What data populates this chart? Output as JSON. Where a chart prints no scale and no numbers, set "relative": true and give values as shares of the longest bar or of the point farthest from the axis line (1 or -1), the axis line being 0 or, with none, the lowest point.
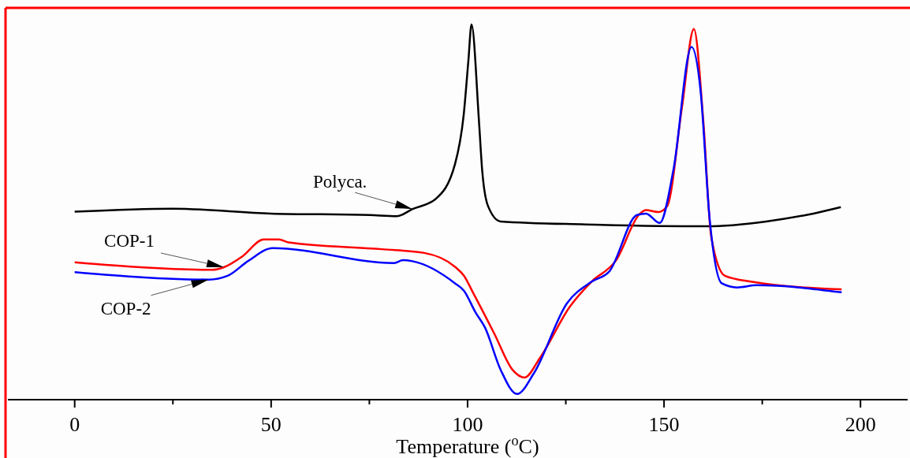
{
  "chart_data": {
    "type": "line",
    "relative": true,
    "xlabel": "Temperature ($^{o}$C)",
    "xlim": [
      -17,
      212
    ],
    "xticks": [
      0,
      {
        "value": 25,
        "label": null
      },
      50,
      {
        "value": 75,
        "label": null
      },
      100,
      {
        "value": 125,
        "label": null
      },
      150,
      {
        "value": 175,
        "label": null
      },
      200
    ],
    "tick_labels": "x",
    "grid": false,
    "line_style": "solid",
    "series": [
      {
        "name": "Polyca.",
        "color": "#000000",
        "x": [
          0,
          25,
          50,
          75,
          82,
          86,
          92,
          96.8,
          99,
          100.2,
          101,
          102.9,
          103.7,
          105.2,
          108.4,
          130,
          161,
          176,
          188,
          195
        ],
        "values": [
          0.501,
          0.509,
          0.496,
          0.492,
          0.489,
          0.508,
          0.536,
          0.628,
          0.758,
          0.903,
          1,
          0.742,
          0.613,
          0.516,
          0.475,
          0.467,
          0.462,
          0.475,
          0.496,
          0.513
        ]
      },
      {
        "name": "COP-1",
        "color": "#ff0000",
        "x": [
          0,
          35,
          38,
          42.7,
          48.1,
          52,
          54.4,
          78.2,
          89,
          96.8,
          99.1,
          101.4,
          106.8,
          111.4,
          114.5,
          118.4,
          126.1,
          131.5,
          137.7,
          143.9,
          145.4,
          148.5,
          150.8,
          154.6,
          157.6,
          160,
          162,
          165.5,
          172.5,
          195.2
        ],
        "values": [
          0.366,
          0.346,
          0.353,
          0.382,
          0.427,
          0.427,
          0.419,
          0.401,
          0.391,
          0.354,
          0.33,
          0.285,
          0.176,
          0.08,
          0.059,
          0.111,
          0.249,
          0.314,
          0.37,
          0.496,
          0.505,
          0.5,
          0.516,
          0.782,
          0.988,
          0.742,
          0.435,
          0.33,
          0.314,
          0.294
        ]
      },
      {
        "name": "COP-2",
        "color": "#0000ff",
        "x": [
          0,
          34.1,
          38.9,
          44.2,
          50.4,
          81.3,
          83.6,
          86,
          96.8,
          99.1,
          102,
          104.4,
          108.4,
          112.6,
          116.9,
          125.3,
          131.5,
          136.1,
          143.1,
          145.4,
          148.9,
          152.4,
          157,
          159.3,
          161.6,
          164.7,
          168.6,
          173.6,
          195.2
        ],
        "values": [
          0.34,
          0.32,
          0.33,
          0.37,
          0.404,
          0.364,
          0.372,
          0.369,
          0.31,
          0.29,
          0.233,
          0.193,
          0.08,
          0.015,
          0.071,
          0.257,
          0.314,
          0.342,
          0.492,
          0.496,
          0.471,
          0.613,
          0.94,
          0.823,
          0.483,
          0.31,
          0.299,
          0.305,
          0.286
        ]
      }
    ]
  }
}
